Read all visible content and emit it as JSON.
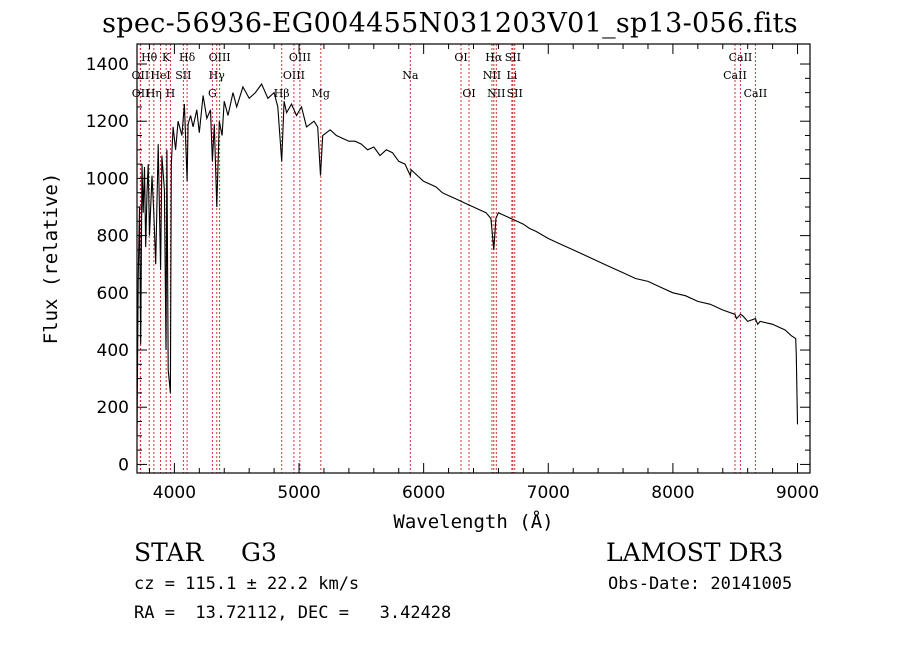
{
  "title": "spec-56936-EG004455N031203V01_sp13-056.fits",
  "info": {
    "class_label": "STAR",
    "subclass": "G3",
    "survey": "LAMOST DR3",
    "cz": "cz = 115.1 ± 22.2 km/s",
    "obs_date": "Obs-Date: 20141005",
    "radec": "RA =  13.72112, DEC =   3.42428"
  },
  "chart_data": {
    "type": "line",
    "title": "spec-56936-EG004455N031203V01_sp13-056.fits",
    "xlabel": "Wavelength (Å)",
    "ylabel": "Flux (relative)",
    "xlim": [
      3700,
      9100
    ],
    "ylim": [
      -30,
      1470
    ],
    "xticks": [
      4000,
      5000,
      6000,
      7000,
      8000,
      9000
    ],
    "yticks": [
      0,
      200,
      400,
      600,
      800,
      1000,
      1200,
      1400
    ],
    "grid": false,
    "line_color": "#000000",
    "marker_color": "#cc3333",
    "spectrum": {
      "x": [
        3700,
        3710,
        3720,
        3730,
        3740,
        3750,
        3760,
        3770,
        3780,
        3790,
        3800,
        3820,
        3835,
        3850,
        3870,
        3889,
        3900,
        3920,
        3933,
        3940,
        3950,
        3968,
        3975,
        3990,
        4010,
        4030,
        4060,
        4080,
        4102,
        4110,
        4130,
        4150,
        4180,
        4200,
        4230,
        4260,
        4290,
        4305,
        4320,
        4340,
        4360,
        4383,
        4400,
        4430,
        4470,
        4500,
        4550,
        4600,
        4650,
        4700,
        4750,
        4800,
        4830,
        4861,
        4880,
        4900,
        4940,
        4980,
        5020,
        5060,
        5120,
        5150,
        5172,
        5190,
        5250,
        5300,
        5350,
        5400,
        5450,
        5500,
        5550,
        5600,
        5650,
        5700,
        5750,
        5800,
        5850,
        5893,
        5900,
        5950,
        6000,
        6050,
        6100,
        6150,
        6200,
        6250,
        6300,
        6350,
        6400,
        6450,
        6500,
        6540,
        6563,
        6580,
        6600,
        6650,
        6700,
        6750,
        6800,
        6850,
        6900,
        7000,
        7100,
        7200,
        7300,
        7400,
        7500,
        7600,
        7700,
        7800,
        7900,
        8000,
        8100,
        8200,
        8300,
        8400,
        8498,
        8510,
        8542,
        8560,
        8600,
        8662,
        8680,
        8700,
        8800,
        8900,
        8950,
        8985,
        8990,
        9000
      ],
      "y": [
        100,
        650,
        900,
        420,
        1050,
        880,
        1040,
        760,
        950,
        1050,
        800,
        1010,
        880,
        700,
        1120,
        680,
        1080,
        960,
        400,
        1100,
        330,
        250,
        1050,
        1180,
        1100,
        1200,
        1150,
        1260,
        990,
        1190,
        1220,
        1180,
        1240,
        1160,
        1290,
        1210,
        1240,
        1060,
        1190,
        900,
        1200,
        1150,
        1270,
        1220,
        1300,
        1250,
        1320,
        1280,
        1300,
        1330,
        1280,
        1300,
        1250,
        1060,
        1270,
        1230,
        1260,
        1220,
        1250,
        1180,
        1200,
        1180,
        1010,
        1150,
        1170,
        1150,
        1140,
        1130,
        1130,
        1120,
        1100,
        1110,
        1080,
        1100,
        1090,
        1060,
        1050,
        1010,
        1030,
        1010,
        990,
        980,
        970,
        950,
        940,
        930,
        920,
        910,
        900,
        890,
        880,
        860,
        750,
        860,
        880,
        870,
        860,
        850,
        840,
        825,
        815,
        790,
        770,
        750,
        730,
        710,
        690,
        670,
        650,
        640,
        620,
        600,
        590,
        570,
        560,
        540,
        525,
        510,
        525,
        520,
        500,
        510,
        490,
        500,
        490,
        470,
        450,
        440,
        380,
        140
      ]
    },
    "lines": [
      {
        "name": "Hθ",
        "x": 3798
      },
      {
        "name": "OII",
        "x": 3727
      },
      {
        "name": "OII",
        "x": 3729
      },
      {
        "name": "Hη",
        "x": 3835
      },
      {
        "name": "HeI",
        "x": 3889
      },
      {
        "name": "K",
        "x": 3934
      },
      {
        "name": "H",
        "x": 3968
      },
      {
        "name": "SII",
        "x": 4072
      },
      {
        "name": "Hδ",
        "x": 4102
      },
      {
        "name": "OIII",
        "x": 4363
      },
      {
        "name": "Hγ",
        "x": 4340
      },
      {
        "name": "G",
        "x": 4305
      },
      {
        "name": "Hβ",
        "x": 4861
      },
      {
        "name": "OIII",
        "x": 4959
      },
      {
        "name": "OIII",
        "x": 5007
      },
      {
        "name": "Mg",
        "x": 5175
      },
      {
        "name": "Na",
        "x": 5893
      },
      {
        "name": "OI",
        "x": 6300
      },
      {
        "name": "OI",
        "x": 6364
      },
      {
        "name": "NII",
        "x": 6548
      },
      {
        "name": "Hα",
        "x": 6563
      },
      {
        "name": "NII",
        "x": 6583
      },
      {
        "name": "Li",
        "x": 6708
      },
      {
        "name": "SII",
        "x": 6716
      },
      {
        "name": "SII",
        "x": 6731
      },
      {
        "name": "CaII",
        "x": 8498
      },
      {
        "name": "CaII",
        "x": 8542
      },
      {
        "name": "CaII",
        "x": 8662
      }
    ],
    "line_labels": [
      {
        "text": "Hθ",
        "x": 3798,
        "row": 0
      },
      {
        "text": "K",
        "x": 3934,
        "row": 0
      },
      {
        "text": "Hδ",
        "x": 4102,
        "row": 0
      },
      {
        "text": "OIII",
        "x": 4363,
        "row": 0
      },
      {
        "text": "OIII",
        "x": 5007,
        "row": 0
      },
      {
        "text": "OI",
        "x": 6300,
        "row": 0
      },
      {
        "text": "Hα",
        "x": 6563,
        "row": 0
      },
      {
        "text": "SII",
        "x": 6716,
        "row": 0
      },
      {
        "text": "CaII",
        "x": 8542,
        "row": 0
      },
      {
        "text": "OII",
        "x": 3727,
        "row": 1
      },
      {
        "text": "HeI",
        "x": 3889,
        "row": 1
      },
      {
        "text": "SII",
        "x": 4072,
        "row": 1
      },
      {
        "text": "Hγ",
        "x": 4340,
        "row": 1
      },
      {
        "text": "OIII",
        "x": 4959,
        "row": 1
      },
      {
        "text": "Na",
        "x": 5893,
        "row": 1
      },
      {
        "text": "NII",
        "x": 6548,
        "row": 1
      },
      {
        "text": "Li",
        "x": 6708,
        "row": 1
      },
      {
        "text": "CaII",
        "x": 8498,
        "row": 1
      },
      {
        "text": "OII",
        "x": 3729,
        "row": 2
      },
      {
        "text": "Hη",
        "x": 3835,
        "row": 2
      },
      {
        "text": "H",
        "x": 3968,
        "row": 2
      },
      {
        "text": "G",
        "x": 4305,
        "row": 2
      },
      {
        "text": "Hβ",
        "x": 4861,
        "row": 2
      },
      {
        "text": "Mg",
        "x": 5175,
        "row": 2
      },
      {
        "text": "OI",
        "x": 6364,
        "row": 2
      },
      {
        "text": "NII",
        "x": 6583,
        "row": 2
      },
      {
        "text": "SII",
        "x": 6731,
        "row": 2
      },
      {
        "text": "CaII",
        "x": 8662,
        "row": 2
      }
    ]
  }
}
